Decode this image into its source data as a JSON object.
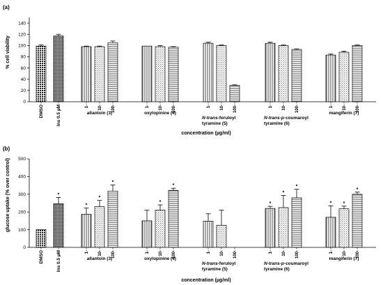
{
  "panels": [
    {
      "panel_label": "(a)",
      "xlabel": "concentration (µg/ml)",
      "chart_data": {
        "type": "bar",
        "ylabel": "% cell viability",
        "ylim": [
          0,
          150
        ],
        "yticks": [
          0,
          20,
          40,
          60,
          80,
          100,
          120,
          140
        ],
        "groups": [
          {
            "label": "DMSO",
            "bars": [
              {
                "tick": "DMSO",
                "value": 99,
                "err": 2,
                "pattern": "crosshatch"
              }
            ]
          },
          {
            "label": "Ins 0.5 µM",
            "bars": [
              {
                "tick": "Ins 0.5 µM",
                "value": 117,
                "err": 3,
                "pattern": "dense"
              }
            ]
          },
          {
            "label": "allantoin (3)",
            "bars": [
              {
                "tick": "1",
                "value": 98,
                "err": 1,
                "pattern": "vertical"
              },
              {
                "tick": "10",
                "value": 98,
                "err": 1,
                "pattern": "dots"
              },
              {
                "tick": "100",
                "value": 105,
                "err": 3,
                "pattern": "horizontal"
              }
            ]
          },
          {
            "label": "oxylopinine (4)",
            "bars": [
              {
                "tick": "1",
                "value": 99,
                "err": 0,
                "pattern": "vertical"
              },
              {
                "tick": "10",
                "value": 98,
                "err": 2,
                "pattern": "dots"
              },
              {
                "tick": "100",
                "value": 97,
                "err": 1,
                "pattern": "horizontal"
              }
            ]
          },
          {
            "label": "N-trans-feruloyl tyramine (5)",
            "bars": [
              {
                "tick": "1",
                "value": 104,
                "err": 2,
                "pattern": "vertical"
              },
              {
                "tick": "10",
                "value": 100,
                "err": 1,
                "pattern": "dots"
              },
              {
                "tick": "100",
                "value": 29,
                "err": 1,
                "pattern": "horizontal"
              }
            ]
          },
          {
            "label": "N-trans-p-coumaroyl tyramine (6)",
            "bars": [
              {
                "tick": "1",
                "value": 104,
                "err": 2,
                "pattern": "vertical"
              },
              {
                "tick": "10",
                "value": 100,
                "err": 1,
                "pattern": "dots"
              },
              {
                "tick": "100",
                "value": 93,
                "err": 1,
                "pattern": "horizontal"
              }
            ]
          },
          {
            "label": "mangiferin (7)",
            "bars": [
              {
                "tick": "1",
                "value": 83,
                "err": 2,
                "pattern": "vertical"
              },
              {
                "tick": "10",
                "value": 88,
                "err": 2,
                "pattern": "dots"
              },
              {
                "tick": "100",
                "value": 100,
                "err": 1,
                "pattern": "horizontal"
              }
            ]
          }
        ]
      }
    },
    {
      "panel_label": "(b)",
      "xlabel": "concentration (µg/ml)",
      "chart_data": {
        "type": "bar",
        "ylabel": "glucose uptake (% over control)",
        "ylim": [
          0,
          500
        ],
        "yticks": [
          0,
          100,
          200,
          300,
          400,
          500
        ],
        "groups": [
          {
            "label": "DMSO",
            "bars": [
              {
                "tick": "DMSO",
                "value": 100,
                "err": 0,
                "pattern": "crosshatch",
                "star": false
              }
            ]
          },
          {
            "label": "Ins 0.5 µM",
            "bars": [
              {
                "tick": "Ins 0.5 µM",
                "value": 247,
                "err": 35,
                "pattern": "dense",
                "star": true
              }
            ]
          },
          {
            "label": "allantoin (3)",
            "bars": [
              {
                "tick": "1",
                "value": 187,
                "err": 35,
                "pattern": "vertical",
                "star": true
              },
              {
                "tick": "10",
                "value": 230,
                "err": 35,
                "pattern": "dots",
                "star": true
              },
              {
                "tick": "100",
                "value": 318,
                "err": 35,
                "pattern": "horizontal",
                "star": true
              }
            ]
          },
          {
            "label": "oxylopinine (4)",
            "bars": [
              {
                "tick": "1",
                "value": 150,
                "err": 60,
                "pattern": "vertical",
                "star": false
              },
              {
                "tick": "10",
                "value": 210,
                "err": 30,
                "pattern": "dots",
                "star": true
              },
              {
                "tick": "100",
                "value": 322,
                "err": 12,
                "pattern": "horizontal",
                "star": true
              }
            ]
          },
          {
            "label": "N-trans-feruloyl tyramine (5)",
            "bars": [
              {
                "tick": "1",
                "value": 148,
                "err": 42,
                "pattern": "vertical",
                "star": false
              },
              {
                "tick": "10",
                "value": 125,
                "err": 85,
                "pattern": "dots",
                "star": false
              },
              {
                "tick": "100",
                "value": 0,
                "err": 0,
                "pattern": "horizontal",
                "star": false
              }
            ]
          },
          {
            "label": "N-trans-p-coumaroyl tyramine (6)",
            "bars": [
              {
                "tick": "1",
                "value": 220,
                "err": 12,
                "pattern": "vertical",
                "star": true
              },
              {
                "tick": "10",
                "value": 225,
                "err": 68,
                "pattern": "dots",
                "star": true
              },
              {
                "tick": "100",
                "value": 280,
                "err": 48,
                "pattern": "horizontal",
                "star": true
              }
            ]
          },
          {
            "label": "mangiferin (7)",
            "bars": [
              {
                "tick": "1",
                "value": 170,
                "err": 65,
                "pattern": "vertical",
                "star": true
              },
              {
                "tick": "10",
                "value": 218,
                "err": 15,
                "pattern": "dots",
                "star": true
              },
              {
                "tick": "100",
                "value": 300,
                "err": 12,
                "pattern": "horizontal",
                "star": true
              }
            ]
          }
        ]
      }
    }
  ]
}
